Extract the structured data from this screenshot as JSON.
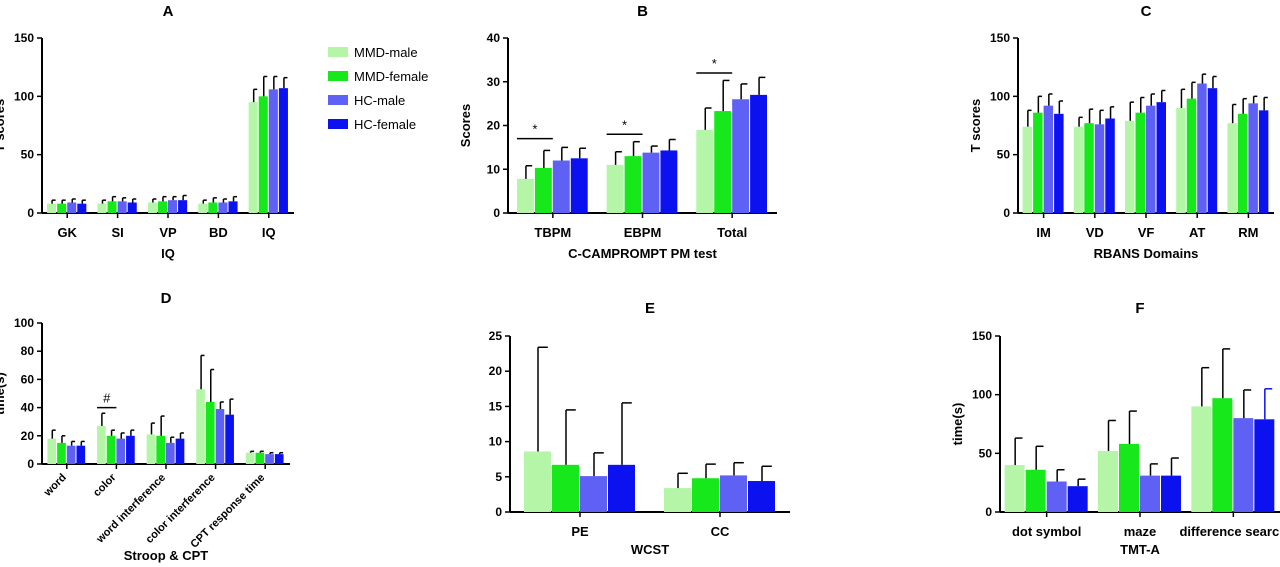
{
  "colors": {
    "MMD-male": "#b5f5a8",
    "MMD-female": "#17e81b",
    "HC-male": "#5f61f4",
    "HC-female": "#0b12ef"
  },
  "legend": [
    "MMD-male",
    "MMD-female",
    "HC-male",
    "HC-female"
  ],
  "chart_data": [
    {
      "panel": "A",
      "type": "bar",
      "xlabel": "IQ",
      "ylabel": "T scores",
      "ylim": [
        0,
        150
      ],
      "yticks": [
        0,
        50,
        100,
        150
      ],
      "categories": [
        "GK",
        "SI",
        "VP",
        "BD",
        "IQ"
      ],
      "series": [
        {
          "name": "MMD-male",
          "values": [
            8,
            8,
            9,
            8,
            95
          ],
          "errors": [
            3,
            3,
            3,
            3,
            11
          ]
        },
        {
          "name": "MMD-female",
          "values": [
            8,
            10,
            10,
            9,
            100
          ],
          "errors": [
            3,
            4,
            4,
            4,
            17
          ]
        },
        {
          "name": "HC-male",
          "values": [
            9,
            10,
            11,
            9,
            106
          ],
          "errors": [
            3,
            3,
            3,
            3,
            11
          ]
        },
        {
          "name": "HC-female",
          "values": [
            8,
            9,
            11,
            10,
            107
          ],
          "errors": [
            3,
            3,
            4,
            4,
            9
          ]
        }
      ],
      "annotations": []
    },
    {
      "panel": "B",
      "type": "bar",
      "xlabel": "C-CAMPROMPT PM test",
      "ylabel": "Scores",
      "ylim": [
        0,
        40
      ],
      "yticks": [
        0,
        10,
        20,
        30,
        40
      ],
      "categories": [
        "TBPM",
        "EBPM",
        "Total"
      ],
      "series": [
        {
          "name": "MMD-male",
          "values": [
            7.8,
            11,
            19
          ],
          "errors": [
            3,
            3,
            5
          ]
        },
        {
          "name": "MMD-female",
          "values": [
            10.3,
            13,
            23.3
          ],
          "errors": [
            4,
            3.3,
            7
          ]
        },
        {
          "name": "HC-male",
          "values": [
            12,
            13.8,
            26
          ],
          "errors": [
            3,
            1.5,
            3.5
          ]
        },
        {
          "name": "HC-female",
          "values": [
            12.5,
            14.3,
            27
          ],
          "errors": [
            2.3,
            2.5,
            4
          ]
        }
      ],
      "annotations": [
        {
          "text": "*",
          "category": 0,
          "from": 0,
          "to": 1,
          "y": 17
        },
        {
          "text": "*",
          "category": 1,
          "from": 0,
          "to": 1,
          "y": 18
        },
        {
          "text": "*",
          "category": 2,
          "from": 0,
          "to": 1,
          "y": 32
        }
      ]
    },
    {
      "panel": "C",
      "type": "bar",
      "xlabel": "RBANS Domains",
      "ylabel": "T scores",
      "ylim": [
        0,
        150
      ],
      "yticks": [
        0,
        50,
        100,
        150
      ],
      "categories": [
        "IM",
        "VD",
        "VF",
        "AT",
        "RM"
      ],
      "series": [
        {
          "name": "MMD-male",
          "values": [
            74,
            74,
            79,
            90,
            77
          ],
          "errors": [
            14,
            8,
            16,
            16,
            16
          ]
        },
        {
          "name": "MMD-female",
          "values": [
            86,
            77,
            86,
            98,
            85
          ],
          "errors": [
            14,
            12,
            13,
            14,
            13
          ]
        },
        {
          "name": "HC-male",
          "values": [
            92,
            76,
            92,
            111,
            94
          ],
          "errors": [
            10,
            12,
            10,
            8,
            6
          ]
        },
        {
          "name": "HC-female",
          "values": [
            85,
            81,
            95,
            107,
            88
          ],
          "errors": [
            11,
            10,
            10,
            10,
            11
          ]
        }
      ],
      "annotations": []
    },
    {
      "panel": "D",
      "type": "bar",
      "xlabel": "Stroop & CPT",
      "ylabel": "time(s)",
      "ylim": [
        0,
        100
      ],
      "yticks": [
        0,
        20,
        40,
        60,
        80,
        100
      ],
      "categories": [
        "word",
        "color",
        "word interference",
        "color interference",
        "CPT response time"
      ],
      "series": [
        {
          "name": "MMD-male",
          "values": [
            18,
            27,
            21,
            53,
            8
          ],
          "errors": [
            6,
            9,
            8,
            24,
            1
          ]
        },
        {
          "name": "MMD-female",
          "values": [
            15,
            20,
            20,
            44,
            8
          ],
          "errors": [
            5,
            4,
            14,
            23,
            1
          ]
        },
        {
          "name": "HC-male",
          "values": [
            13,
            18,
            15,
            39,
            7
          ],
          "errors": [
            3,
            4,
            4,
            5,
            1
          ]
        },
        {
          "name": "HC-female",
          "values": [
            13,
            20,
            18,
            35,
            7
          ],
          "errors": [
            3,
            4,
            4,
            11,
            1
          ]
        }
      ],
      "annotations": [
        {
          "text": "#",
          "category": 1,
          "from": 0,
          "to": 1,
          "y": 40
        }
      ]
    },
    {
      "panel": "E",
      "type": "bar",
      "xlabel": "WCST",
      "ylabel": "",
      "ylim": [
        0,
        25
      ],
      "yticks": [
        0,
        5,
        10,
        15,
        20,
        25
      ],
      "categories": [
        "PE",
        "CC"
      ],
      "series": [
        {
          "name": "MMD-male",
          "values": [
            8.6,
            3.4
          ],
          "errors": [
            14.8,
            2.1
          ]
        },
        {
          "name": "MMD-female",
          "values": [
            6.7,
            4.8
          ],
          "errors": [
            7.8,
            2
          ]
        },
        {
          "name": "HC-male",
          "values": [
            5.1,
            5.2
          ],
          "errors": [
            3.3,
            1.8
          ]
        },
        {
          "name": "HC-female",
          "values": [
            6.7,
            4.4
          ],
          "errors": [
            8.8,
            2.1
          ]
        }
      ],
      "annotations": []
    },
    {
      "panel": "F",
      "type": "bar",
      "xlabel": "TMT-A",
      "ylabel": "time(s)",
      "ylim": [
        0,
        150
      ],
      "yticks": [
        0,
        50,
        100,
        150
      ],
      "categories": [
        "dot symbol",
        "maze",
        "difference search"
      ],
      "series": [
        {
          "name": "MMD-male",
          "values": [
            40,
            52,
            90
          ],
          "errors": [
            23,
            26,
            33
          ]
        },
        {
          "name": "MMD-female",
          "values": [
            36,
            58,
            97
          ],
          "errors": [
            20,
            28,
            42
          ]
        },
        {
          "name": "HC-male",
          "values": [
            26,
            31,
            80
          ],
          "errors": [
            10,
            10,
            24
          ]
        },
        {
          "name": "HC-female",
          "values": [
            22,
            31,
            79
          ],
          "errors": [
            6,
            15,
            26
          ]
        }
      ],
      "annotations": []
    }
  ]
}
